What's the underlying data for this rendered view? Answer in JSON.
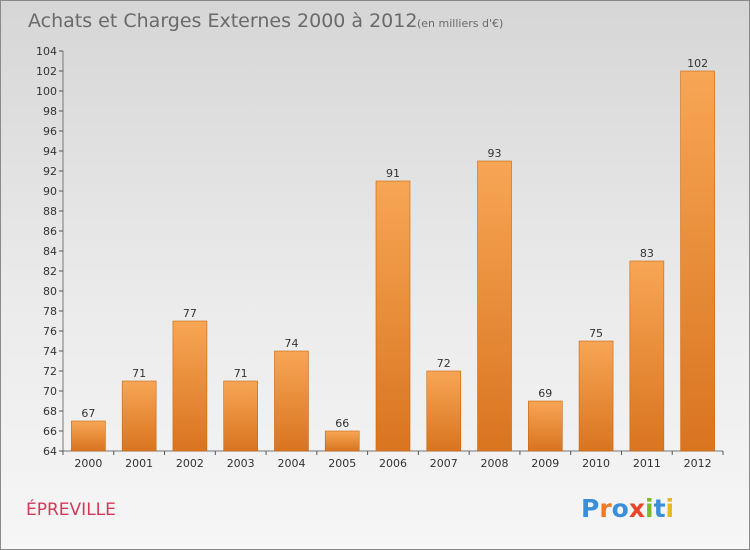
{
  "title": "Achats et Charges Externes 2000 à 2012",
  "subtitle": "(en milliers d'€)",
  "commune": "ÉPREVILLE",
  "logo": {
    "text": "Proxiti",
    "letters": [
      "P",
      "r",
      "o",
      "x",
      "i",
      "t",
      "i"
    ],
    "colors": [
      "#3a8fd8",
      "#f07b22",
      "#3a8fd8",
      "#e8462a",
      "#7dbb2c",
      "#3a8fd8",
      "#e8b820"
    ]
  },
  "colors": {
    "bar_light": "#f7a655",
    "bar_dark": "#d9741f",
    "bar_edge": "#c96612",
    "axis": "#777777",
    "grid_tick": "#555555",
    "commune": "#d23a5a"
  },
  "chart_data": {
    "type": "bar",
    "categories": [
      "2000",
      "2001",
      "2002",
      "2003",
      "2004",
      "2005",
      "2006",
      "2007",
      "2008",
      "2009",
      "2010",
      "2011",
      "2012"
    ],
    "values": [
      67,
      71,
      77,
      71,
      74,
      66,
      91,
      72,
      93,
      69,
      75,
      83,
      102
    ],
    "title": "Achats et Charges Externes 2000 à 2012",
    "subtitle": "(en milliers d'€)",
    "xlabel": "",
    "ylabel": "",
    "ylim": [
      64,
      104
    ],
    "yticks": [
      64,
      66,
      68,
      70,
      72,
      74,
      76,
      78,
      80,
      82,
      84,
      86,
      88,
      90,
      92,
      94,
      96,
      98,
      100,
      102,
      104
    ],
    "grid": false,
    "data_labels": true
  }
}
